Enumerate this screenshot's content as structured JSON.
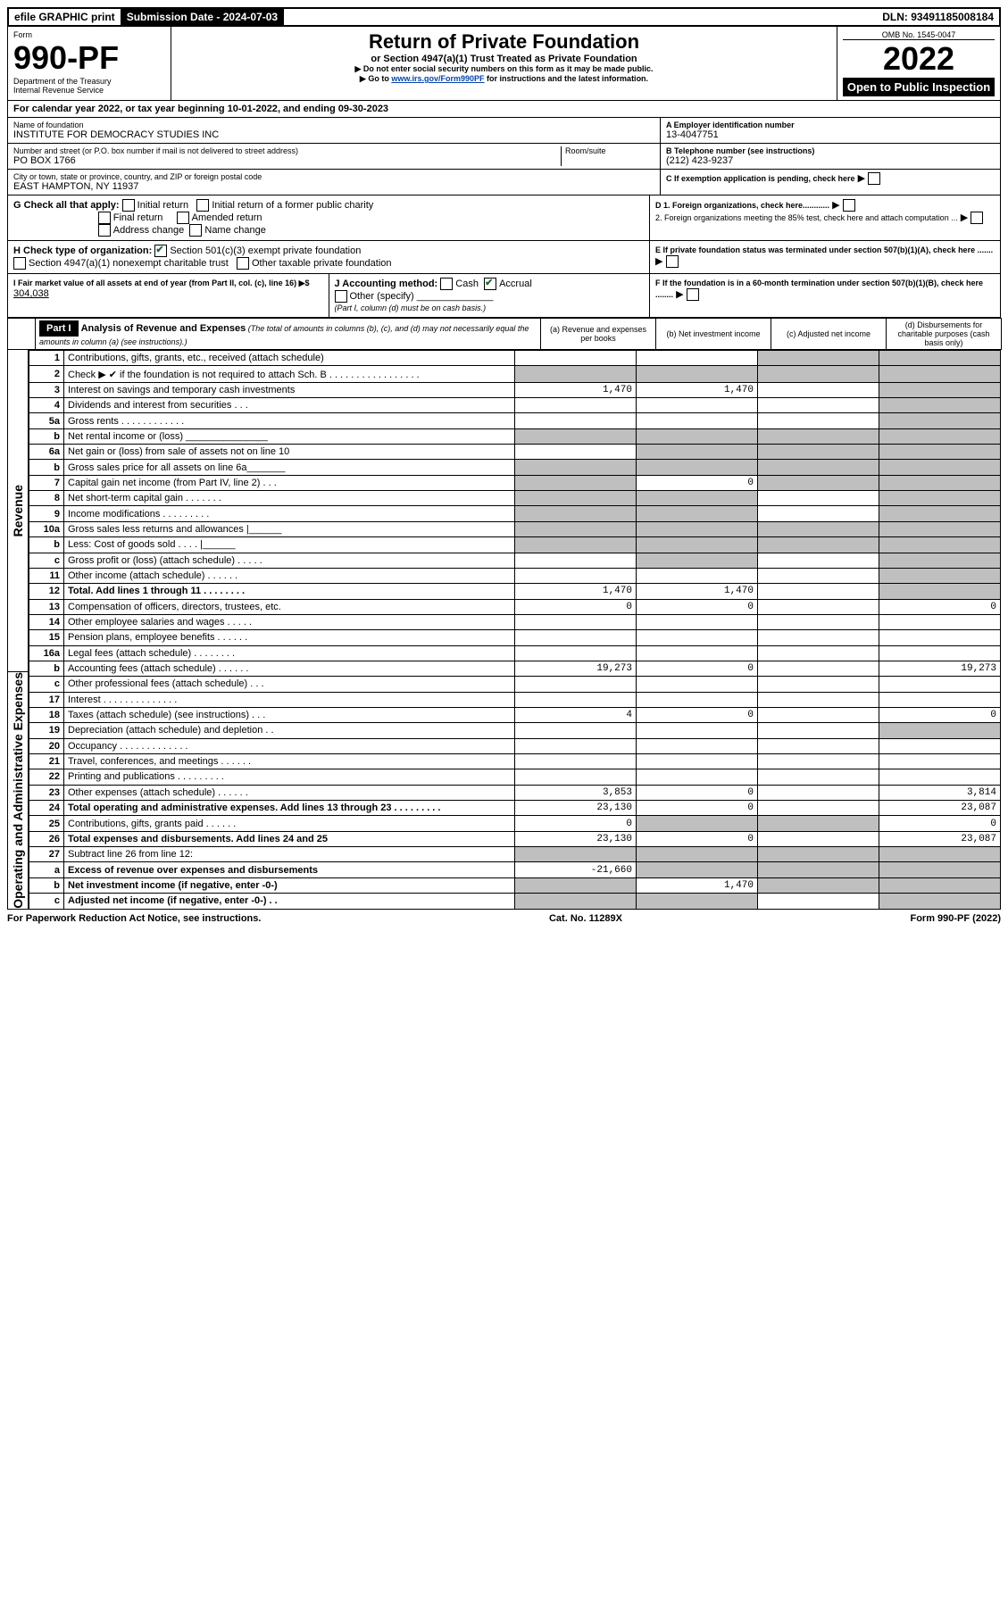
{
  "topbar": {
    "efile": "efile GRAPHIC print",
    "subdate_label": "Submission Date - ",
    "subdate": "2024-07-03",
    "dln_label": "DLN: ",
    "dln": "93491185008184"
  },
  "header": {
    "form_label": "Form",
    "form_no": "990-PF",
    "dept": "Department of the Treasury",
    "irs": "Internal Revenue Service",
    "title": "Return of Private Foundation",
    "subtitle": "or Section 4947(a)(1) Trust Treated as Private Foundation",
    "note1": "▶ Do not enter social security numbers on this form as it may be made public.",
    "note2_pre": "▶ Go to ",
    "note2_link": "www.irs.gov/Form990PF",
    "note2_post": " for instructions and the latest information.",
    "omb": "OMB No. 1545-0047",
    "year": "2022",
    "open": "Open to Public Inspection"
  },
  "period": {
    "prefix": "For calendar year 2022, or tax year beginning ",
    "begin": "10-01-2022",
    "mid": ", and ending ",
    "end": "09-30-2023"
  },
  "ident": {
    "name_label": "Name of foundation",
    "name": "INSTITUTE FOR DEMOCRACY STUDIES INC",
    "addr_label": "Number and street (or P.O. box number if mail is not delivered to street address)",
    "addr": "PO BOX 1766",
    "room_label": "Room/suite",
    "city_label": "City or town, state or province, country, and ZIP or foreign postal code",
    "city": "EAST HAMPTON, NY  11937",
    "ein_label": "A Employer identification number",
    "ein": "13-4047751",
    "tel_label": "B Telephone number (see instructions)",
    "tel": "(212) 423-9237",
    "c_label": "C If exemption application is pending, check here"
  },
  "g": {
    "label": "G Check all that apply:",
    "initial": "Initial return",
    "initial_former": "Initial return of a former public charity",
    "final": "Final return",
    "amended": "Amended return",
    "addr_change": "Address change",
    "name_change": "Name change"
  },
  "h": {
    "label": "H Check type of organization:",
    "o1": "Section 501(c)(3) exempt private foundation",
    "o2": "Section 4947(a)(1) nonexempt charitable trust",
    "o3": "Other taxable private foundation"
  },
  "i": {
    "label": "I Fair market value of all assets at end of year (from Part II, col. (c), line 16) ▶$ ",
    "val": "304,038"
  },
  "j": {
    "label": "J Accounting method:",
    "cash": "Cash",
    "accrual": "Accrual",
    "other": "Other (specify)",
    "note": "(Part I, column (d) must be on cash basis.)"
  },
  "d": {
    "d1": "D 1. Foreign organizations, check here............",
    "d2": "2. Foreign organizations meeting the 85% test, check here and attach computation ..."
  },
  "e": {
    "label": "E  If private foundation status was terminated under section 507(b)(1)(A), check here ......."
  },
  "f": {
    "label": "F  If the foundation is in a 60-month termination under section 507(b)(1)(B), check here ........"
  },
  "part1": {
    "hdr": "Part I",
    "title": "Analysis of Revenue and Expenses",
    "title_note": " (The total of amounts in columns (b), (c), and (d) may not necessarily equal the amounts in column (a) (see instructions).)",
    "col_a": "(a)  Revenue and expenses per books",
    "col_b": "(b)  Net investment income",
    "col_c": "(c)  Adjusted net income",
    "col_d": "(d)  Disbursements for charitable purposes (cash basis only)"
  },
  "sides": {
    "rev": "Revenue",
    "opex": "Operating and Administrative Expenses"
  },
  "rows": [
    {
      "n": "1",
      "d": "Contributions, gifts, grants, etc., received (attach schedule)",
      "a": "",
      "b": "",
      "c": "grey",
      "dcol": "grey"
    },
    {
      "n": "2",
      "d": "Check ▶ ✔ if the foundation is not required to attach Sch. B   . . . . . . . . . . . . . . . . .",
      "a": "grey",
      "b": "grey",
      "c": "grey",
      "dcol": "grey"
    },
    {
      "n": "3",
      "d": "Interest on savings and temporary cash investments",
      "a": "1,470",
      "b": "1,470",
      "c": "",
      "dcol": "grey"
    },
    {
      "n": "4",
      "d": "Dividends and interest from securities   .  .  .",
      "a": "",
      "b": "",
      "c": "",
      "dcol": "grey"
    },
    {
      "n": "5a",
      "d": "Gross rents   . . . . . . . . . . . .",
      "a": "",
      "b": "",
      "c": "",
      "dcol": "grey"
    },
    {
      "n": "b",
      "d": "Net rental income or (loss)  _______________",
      "a": "grey",
      "b": "grey",
      "c": "grey",
      "dcol": "grey"
    },
    {
      "n": "6a",
      "d": "Net gain or (loss) from sale of assets not on line 10",
      "a": "",
      "b": "grey",
      "c": "grey",
      "dcol": "grey"
    },
    {
      "n": "b",
      "d": "Gross sales price for all assets on line 6a_______",
      "a": "grey",
      "b": "grey",
      "c": "grey",
      "dcol": "grey"
    },
    {
      "n": "7",
      "d": "Capital gain net income (from Part IV, line 2)   .  .  .",
      "a": "grey",
      "b": "0",
      "c": "grey",
      "dcol": "grey"
    },
    {
      "n": "8",
      "d": "Net short-term capital gain   .  .  .  .  .  .  .",
      "a": "grey",
      "b": "grey",
      "c": "",
      "dcol": "grey"
    },
    {
      "n": "9",
      "d": "Income modifications   .  .  .  .  .  .  .  .  .",
      "a": "grey",
      "b": "grey",
      "c": "",
      "dcol": "grey"
    },
    {
      "n": "10a",
      "d": "Gross sales less returns and allowances  |______",
      "a": "grey",
      "b": "grey",
      "c": "grey",
      "dcol": "grey"
    },
    {
      "n": "b",
      "d": "Less: Cost of goods sold    .  .  .  .    |______",
      "a": "grey",
      "b": "grey",
      "c": "grey",
      "dcol": "grey"
    },
    {
      "n": "c",
      "d": "Gross profit or (loss) (attach schedule)   .  .  .  .  .",
      "a": "",
      "b": "grey",
      "c": "",
      "dcol": "grey"
    },
    {
      "n": "11",
      "d": "Other income (attach schedule)   .  .  .  .  .  .",
      "a": "",
      "b": "",
      "c": "",
      "dcol": "grey"
    },
    {
      "n": "12",
      "d": "Total. Add lines 1 through 11   .  .  .  .  .  .  .  .",
      "a": "1,470",
      "b": "1,470",
      "c": "",
      "dcol": "grey",
      "bold": true
    },
    {
      "n": "13",
      "d": "Compensation of officers, directors, trustees, etc.",
      "a": "0",
      "b": "0",
      "c": "",
      "dcol": "0"
    },
    {
      "n": "14",
      "d": "Other employee salaries and wages   .  .  .  .  .",
      "a": "",
      "b": "",
      "c": "",
      "dcol": ""
    },
    {
      "n": "15",
      "d": "Pension plans, employee benefits   .  .  .  .  .  .",
      "a": "",
      "b": "",
      "c": "",
      "dcol": ""
    },
    {
      "n": "16a",
      "d": "Legal fees (attach schedule)   .  .  .  .  .  .  .  .",
      "a": "",
      "b": "",
      "c": "",
      "dcol": ""
    },
    {
      "n": "b",
      "d": "Accounting fees (attach schedule)   .  .  .  .  .  .",
      "a": "19,273",
      "b": "0",
      "c": "",
      "dcol": "19,273"
    },
    {
      "n": "c",
      "d": "Other professional fees (attach schedule)   .  .  .",
      "a": "",
      "b": "",
      "c": "",
      "dcol": ""
    },
    {
      "n": "17",
      "d": "Interest   .  .  .  .  .  .  .  .  .  .  .  .  .  .",
      "a": "",
      "b": "",
      "c": "",
      "dcol": ""
    },
    {
      "n": "18",
      "d": "Taxes (attach schedule) (see instructions)   .  .  .",
      "a": "4",
      "b": "0",
      "c": "",
      "dcol": "0"
    },
    {
      "n": "19",
      "d": "Depreciation (attach schedule) and depletion   .  .",
      "a": "",
      "b": "",
      "c": "",
      "dcol": "grey"
    },
    {
      "n": "20",
      "d": "Occupancy   .  .  .  .  .  .  .  .  .  .  .  .  .",
      "a": "",
      "b": "",
      "c": "",
      "dcol": ""
    },
    {
      "n": "21",
      "d": "Travel, conferences, and meetings   .  .  .  .  .  .",
      "a": "",
      "b": "",
      "c": "",
      "dcol": ""
    },
    {
      "n": "22",
      "d": "Printing and publications   .  .  .  .  .  .  .  .  .",
      "a": "",
      "b": "",
      "c": "",
      "dcol": ""
    },
    {
      "n": "23",
      "d": "Other expenses (attach schedule)   .  .  .  .  .  .",
      "a": "3,853",
      "b": "0",
      "c": "",
      "dcol": "3,814"
    },
    {
      "n": "24",
      "d": "Total operating and administrative expenses. Add lines 13 through 23   .  .  .  .  .  .  .  .  .",
      "a": "23,130",
      "b": "0",
      "c": "",
      "dcol": "23,087",
      "bold": true
    },
    {
      "n": "25",
      "d": "Contributions, gifts, grants paid   .  .  .  .  .  .",
      "a": "0",
      "b": "grey",
      "c": "grey",
      "dcol": "0"
    },
    {
      "n": "26",
      "d": "Total expenses and disbursements. Add lines 24 and 25",
      "a": "23,130",
      "b": "0",
      "c": "",
      "dcol": "23,087",
      "bold": true
    },
    {
      "n": "27",
      "d": "Subtract line 26 from line 12:",
      "a": "grey",
      "b": "grey",
      "c": "grey",
      "dcol": "grey"
    },
    {
      "n": "a",
      "d": "Excess of revenue over expenses and disbursements",
      "a": "-21,660",
      "b": "grey",
      "c": "grey",
      "dcol": "grey",
      "bold": true
    },
    {
      "n": "b",
      "d": "Net investment income (if negative, enter -0-)",
      "a": "grey",
      "b": "1,470",
      "c": "grey",
      "dcol": "grey",
      "bold": true
    },
    {
      "n": "c",
      "d": "Adjusted net income (if negative, enter -0-)   .  .",
      "a": "grey",
      "b": "grey",
      "c": "",
      "dcol": "grey",
      "bold": true
    }
  ],
  "footer": {
    "left": "For Paperwork Reduction Act Notice, see instructions.",
    "mid": "Cat. No. 11289X",
    "right": "Form 990-PF (2022)"
  }
}
